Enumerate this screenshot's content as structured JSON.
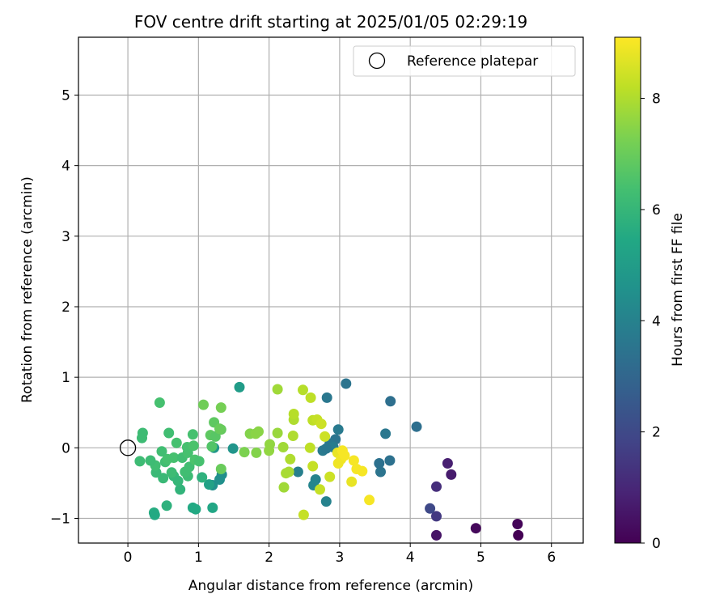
{
  "chart_data": {
    "type": "scatter",
    "title": "FOV centre drift starting at 2025/01/05 02:29:19",
    "xlabel": "Angular distance from reference (arcmin)",
    "ylabel": "Rotation from reference (arcmin)",
    "xlim": [
      -0.7,
      6.45
    ],
    "ylim": [
      -1.35,
      5.82
    ],
    "xticks": [
      "0",
      "1",
      "2",
      "3",
      "4",
      "5",
      "6"
    ],
    "yticks": [
      "−1",
      "0",
      "1",
      "2",
      "3",
      "4",
      "5"
    ],
    "grid": true,
    "legend": {
      "position": "top-right",
      "entries": [
        {
          "label": "Reference platepar",
          "marker": "open-circle"
        }
      ]
    },
    "reference": {
      "x": 0,
      "y": 0
    },
    "colorbar": {
      "label": "Hours from first FF file",
      "colormap": "viridis",
      "range": [
        0,
        9.1
      ],
      "ticks": [
        "0",
        "2",
        "4",
        "6",
        "8"
      ]
    },
    "points": [
      {
        "x": 5.53,
        "y": -1.24,
        "c": 0.0
      },
      {
        "x": 5.52,
        "y": -1.08,
        "c": 0.1
      },
      {
        "x": 4.93,
        "y": -1.14,
        "c": 0.2
      },
      {
        "x": 4.37,
        "y": -1.24,
        "c": 0.5
      },
      {
        "x": 4.58,
        "y": -0.38,
        "c": 0.7
      },
      {
        "x": 4.53,
        "y": -0.22,
        "c": 0.8
      },
      {
        "x": 4.37,
        "y": -0.55,
        "c": 1.2
      },
      {
        "x": 4.37,
        "y": -0.97,
        "c": 1.5
      },
      {
        "x": 4.28,
        "y": -0.86,
        "c": 2.0
      },
      {
        "x": 4.09,
        "y": 0.3,
        "c": 3.3
      },
      {
        "x": 3.72,
        "y": 0.66,
        "c": 3.3
      },
      {
        "x": 3.71,
        "y": -0.18,
        "c": 3.4
      },
      {
        "x": 3.58,
        "y": -0.34,
        "c": 3.5
      },
      {
        "x": 3.56,
        "y": -0.22,
        "c": 3.4
      },
      {
        "x": 3.65,
        "y": 0.2,
        "c": 3.6
      },
      {
        "x": 3.09,
        "y": 0.91,
        "c": 3.5
      },
      {
        "x": 2.82,
        "y": 0.71,
        "c": 3.6
      },
      {
        "x": 2.98,
        "y": 0.26,
        "c": 3.7
      },
      {
        "x": 2.94,
        "y": 0.12,
        "c": 3.5
      },
      {
        "x": 2.86,
        "y": 0.06,
        "c": 3.6
      },
      {
        "x": 2.91,
        "y": 0.01,
        "c": 3.8
      },
      {
        "x": 2.76,
        "y": -0.04,
        "c": 3.7
      },
      {
        "x": 2.81,
        "y": -0.01,
        "c": 3.6
      },
      {
        "x": 2.41,
        "y": -0.34,
        "c": 3.9
      },
      {
        "x": 2.66,
        "y": -0.45,
        "c": 4.0
      },
      {
        "x": 2.63,
        "y": -0.53,
        "c": 4.1
      },
      {
        "x": 2.81,
        "y": -0.76,
        "c": 4.0
      },
      {
        "x": 1.33,
        "y": -0.38,
        "c": 4.4
      },
      {
        "x": 1.3,
        "y": -0.45,
        "c": 4.5
      },
      {
        "x": 1.2,
        "y": -0.53,
        "c": 4.5
      },
      {
        "x": 1.49,
        "y": -0.01,
        "c": 4.7
      },
      {
        "x": 1.22,
        "y": 0.0,
        "c": 4.8
      },
      {
        "x": 1.58,
        "y": 0.86,
        "c": 5.0
      },
      {
        "x": 1.15,
        "y": -0.52,
        "c": 5.2
      },
      {
        "x": 1.2,
        "y": -0.85,
        "c": 5.4
      },
      {
        "x": 0.92,
        "y": -0.85,
        "c": 5.5
      },
      {
        "x": 0.96,
        "y": -0.87,
        "c": 5.5
      },
      {
        "x": 0.37,
        "y": -0.92,
        "c": 5.6
      },
      {
        "x": 0.38,
        "y": -0.95,
        "c": 5.5
      },
      {
        "x": 0.55,
        "y": -0.82,
        "c": 5.8
      },
      {
        "x": 1.05,
        "y": -0.42,
        "c": 5.8
      },
      {
        "x": 0.74,
        "y": -0.59,
        "c": 5.9
      },
      {
        "x": 0.71,
        "y": -0.47,
        "c": 6.0
      },
      {
        "x": 0.65,
        "y": -0.4,
        "c": 6.0
      },
      {
        "x": 0.5,
        "y": -0.43,
        "c": 6.1
      },
      {
        "x": 0.4,
        "y": -0.35,
        "c": 6.1
      },
      {
        "x": 0.62,
        "y": -0.35,
        "c": 6.2
      },
      {
        "x": 0.85,
        "y": -0.4,
        "c": 6.2
      },
      {
        "x": 0.81,
        "y": -0.34,
        "c": 6.3
      },
      {
        "x": 0.87,
        "y": -0.27,
        "c": 6.3
      },
      {
        "x": 0.39,
        "y": -0.25,
        "c": 6.3
      },
      {
        "x": 0.32,
        "y": -0.18,
        "c": 6.2
      },
      {
        "x": 0.17,
        "y": -0.19,
        "c": 6.2
      },
      {
        "x": 0.53,
        "y": -0.2,
        "c": 6.3
      },
      {
        "x": 0.56,
        "y": -0.16,
        "c": 6.4
      },
      {
        "x": 0.65,
        "y": -0.14,
        "c": 6.4
      },
      {
        "x": 0.48,
        "y": -0.05,
        "c": 6.3
      },
      {
        "x": 0.77,
        "y": -0.14,
        "c": 6.3
      },
      {
        "x": 0.85,
        "y": -0.07,
        "c": 6.4
      },
      {
        "x": 0.84,
        "y": 0.01,
        "c": 6.4
      },
      {
        "x": 0.95,
        "y": -0.17,
        "c": 6.5
      },
      {
        "x": 1.01,
        "y": -0.19,
        "c": 6.4
      },
      {
        "x": 0.93,
        "y": 0.03,
        "c": 6.5
      },
      {
        "x": 0.69,
        "y": 0.07,
        "c": 6.4
      },
      {
        "x": 0.2,
        "y": 0.14,
        "c": 6.2
      },
      {
        "x": 0.21,
        "y": 0.21,
        "c": 6.2
      },
      {
        "x": 0.58,
        "y": 0.21,
        "c": 6.3
      },
      {
        "x": 0.92,
        "y": 0.19,
        "c": 6.4
      },
      {
        "x": 0.45,
        "y": 0.64,
        "c": 6.4
      },
      {
        "x": 1.19,
        "y": 0.02,
        "c": 6.6
      },
      {
        "x": 1.17,
        "y": 0.18,
        "c": 6.8
      },
      {
        "x": 1.24,
        "y": 0.16,
        "c": 6.7
      },
      {
        "x": 1.22,
        "y": 0.36,
        "c": 6.8
      },
      {
        "x": 1.32,
        "y": 0.26,
        "c": 6.9
      },
      {
        "x": 1.3,
        "y": 0.27,
        "c": 7.0
      },
      {
        "x": 1.07,
        "y": 0.61,
        "c": 7.1
      },
      {
        "x": 1.32,
        "y": 0.57,
        "c": 7.2
      },
      {
        "x": 1.32,
        "y": -0.3,
        "c": 7.0
      },
      {
        "x": 1.65,
        "y": -0.06,
        "c": 7.3
      },
      {
        "x": 1.82,
        "y": -0.07,
        "c": 7.4
      },
      {
        "x": 1.73,
        "y": 0.2,
        "c": 7.4
      },
      {
        "x": 1.81,
        "y": 0.2,
        "c": 7.5
      },
      {
        "x": 1.85,
        "y": 0.23,
        "c": 7.5
      },
      {
        "x": 2.0,
        "y": -0.04,
        "c": 7.6
      },
      {
        "x": 2.01,
        "y": 0.05,
        "c": 7.6
      },
      {
        "x": 2.12,
        "y": 0.21,
        "c": 7.7
      },
      {
        "x": 2.12,
        "y": 0.83,
        "c": 7.8
      },
      {
        "x": 2.2,
        "y": 0.01,
        "c": 7.8
      },
      {
        "x": 2.21,
        "y": -0.56,
        "c": 7.8
      },
      {
        "x": 2.24,
        "y": -0.36,
        "c": 7.9
      },
      {
        "x": 2.28,
        "y": -0.34,
        "c": 7.9
      },
      {
        "x": 2.3,
        "y": -0.16,
        "c": 8.0
      },
      {
        "x": 2.34,
        "y": 0.17,
        "c": 8.0
      },
      {
        "x": 2.35,
        "y": 0.4,
        "c": 8.0
      },
      {
        "x": 2.35,
        "y": 0.48,
        "c": 8.1
      },
      {
        "x": 2.48,
        "y": 0.82,
        "c": 8.1
      },
      {
        "x": 2.59,
        "y": 0.71,
        "c": 8.2
      },
      {
        "x": 2.58,
        "y": 0.0,
        "c": 8.2
      },
      {
        "x": 2.62,
        "y": 0.39,
        "c": 8.2
      },
      {
        "x": 2.68,
        "y": 0.4,
        "c": 8.3
      },
      {
        "x": 2.62,
        "y": -0.26,
        "c": 8.3
      },
      {
        "x": 2.74,
        "y": 0.34,
        "c": 8.4
      },
      {
        "x": 2.79,
        "y": 0.16,
        "c": 8.4
      },
      {
        "x": 2.72,
        "y": -0.59,
        "c": 8.3
      },
      {
        "x": 2.86,
        "y": -0.41,
        "c": 8.4
      },
      {
        "x": 2.49,
        "y": -0.95,
        "c": 8.3
      },
      {
        "x": 2.97,
        "y": -0.07,
        "c": 8.8
      },
      {
        "x": 2.98,
        "y": -0.22,
        "c": 8.9
      },
      {
        "x": 3.02,
        "y": -0.16,
        "c": 8.9
      },
      {
        "x": 3.04,
        "y": -0.04,
        "c": 9.0
      },
      {
        "x": 3.07,
        "y": -0.11,
        "c": 9.0
      },
      {
        "x": 3.2,
        "y": -0.18,
        "c": 9.0
      },
      {
        "x": 3.24,
        "y": -0.3,
        "c": 9.0
      },
      {
        "x": 3.32,
        "y": -0.33,
        "c": 9.0
      },
      {
        "x": 3.17,
        "y": -0.48,
        "c": 8.8
      },
      {
        "x": 3.42,
        "y": -0.74,
        "c": 9.0
      }
    ]
  }
}
